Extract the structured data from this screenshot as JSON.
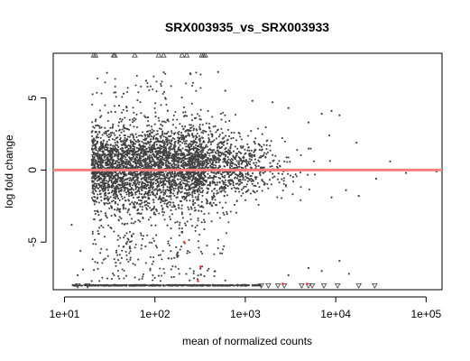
{
  "chart_data": {
    "type": "scatter",
    "title": "SRX003935_vs_SRX003933",
    "xlabel": "mean of normalized counts",
    "ylabel": "log fold change",
    "x_scale": "log10",
    "xlim": [
      7.5,
      150000
    ],
    "ylim": [
      -8.3,
      8.1
    ],
    "x_ticks": [
      10,
      100,
      1000,
      10000,
      100000
    ],
    "x_tick_labels": [
      "1e+01",
      "1e+02",
      "1e+03",
      "1e+04",
      "1e+05"
    ],
    "y_ticks": [
      -5,
      0,
      5
    ],
    "y_tick_labels": [
      "-5",
      "0",
      "5"
    ],
    "reference_line": {
      "y": 0,
      "color": "#ff7f7f"
    },
    "colors": {
      "point": "#404040",
      "significant": "#ff3030"
    },
    "grid": false,
    "legend": "none",
    "series": [
      {
        "marker": "triangle-up",
        "values": [
          [
            21,
            7.95
          ],
          [
            22,
            7.95
          ],
          [
            35,
            7.95
          ],
          [
            36,
            7.95
          ],
          [
            60,
            7.95
          ],
          [
            110,
            7.95
          ],
          [
            125,
            7.95
          ],
          [
            200,
            7.95
          ],
          [
            225,
            7.95
          ],
          [
            330,
            7.95
          ],
          [
            345,
            7.95
          ],
          [
            360,
            7.95
          ]
        ]
      },
      {
        "marker": "triangle-down",
        "values": [
          [
            14,
            -8.0
          ],
          [
            18,
            -8.0
          ],
          [
            1500,
            -8.0
          ],
          [
            1800,
            -8.0
          ],
          [
            2300,
            -8.0
          ],
          [
            2700,
            -8.0
          ],
          [
            4200,
            -8.0
          ],
          [
            5000,
            -8.0
          ],
          [
            5500,
            -8.0
          ],
          [
            7400,
            -8.0
          ],
          [
            10500,
            -8.0
          ],
          [
            18000,
            -8.0
          ],
          [
            27000,
            -8.0
          ]
        ]
      },
      {
        "marker": "dot",
        "values": [
          [
            45,
            5.3
          ],
          [
            80,
            6.2
          ],
          [
            130,
            5.0
          ],
          [
            500,
            6.8
          ],
          [
            600,
            5.5
          ],
          [
            1200,
            4.8
          ],
          [
            2000,
            4.7
          ],
          [
            3000,
            4.3
          ],
          [
            7000,
            3.9
          ],
          [
            9000,
            4.1
          ],
          [
            11000,
            3.8
          ],
          [
            5000,
            3.3
          ],
          [
            8500,
            2.4
          ],
          [
            17000,
            1.9
          ],
          [
            40000,
            0.6
          ],
          [
            60000,
            -0.2
          ],
          [
            130000,
            -0.1
          ],
          [
            9000,
            -1.9
          ],
          [
            13000,
            -1.4
          ],
          [
            18000,
            -1.8
          ],
          [
            28000,
            -0.6
          ],
          [
            14000,
            -7.2
          ],
          [
            11000,
            -6.3
          ],
          [
            7000,
            -7.0
          ],
          [
            5000,
            -6.8
          ],
          [
            12,
            -3.8
          ],
          [
            15,
            -5.6
          ],
          [
            14,
            -7.3
          ],
          [
            16,
            -6.9
          ],
          [
            20,
            -7.7
          ],
          [
            3000,
            -7.3
          ]
        ]
      },
      {
        "marker": "dot-significant",
        "values": [
          [
            210,
            -5.0
          ],
          [
            300,
            -7.7
          ],
          [
            2600,
            -7.9
          ],
          [
            4800,
            -7.9
          ],
          [
            320,
            -6.7
          ]
        ]
      }
    ]
  }
}
